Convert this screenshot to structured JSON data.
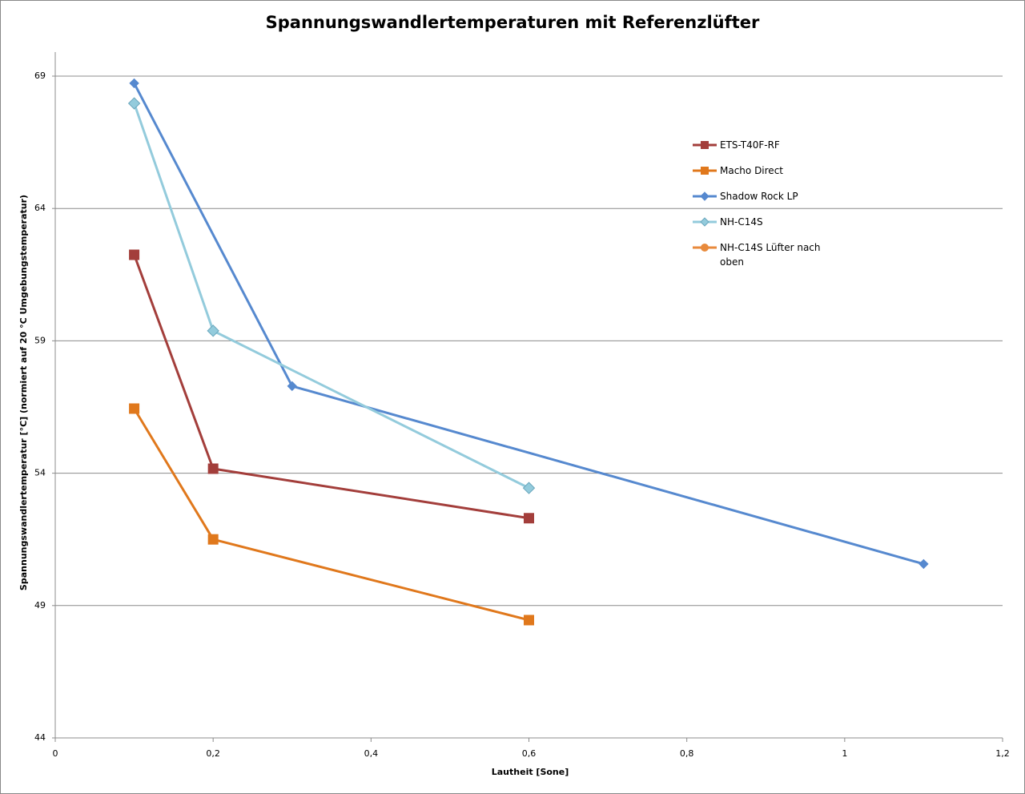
{
  "chart_data": {
    "type": "line",
    "title": "Spannungswandlertemperaturen mit Referenzlüfter",
    "x_label": "Lautheit [Sone]",
    "y_label": "Spannungswandlertemperatur [°C] (normiert auf 20 °C Umgebungstemperatur)",
    "xlim": [
      0,
      1.2
    ],
    "xticks": [
      0,
      {
        "value": 0.2,
        "label": "0,2"
      },
      {
        "value": 0.4,
        "label": "0,4"
      },
      {
        "value": 0.6,
        "label": "0,6"
      },
      {
        "value": 0.8,
        "label": "0,8"
      },
      1,
      {
        "value": 1.2,
        "label": "1,2"
      }
    ],
    "ylim": [
      44,
      69
    ],
    "yticks": [
      44,
      49,
      54,
      59,
      64,
      69
    ],
    "grid": true,
    "legend": "right",
    "series": [
      {
        "name": "ETS-T40F-RF",
        "color": "#a33e3b",
        "marker": "square",
        "x": [
          0.1,
          0.2,
          0.6
        ],
        "values": [
          62.25,
          54.17,
          52.3
        ]
      },
      {
        "name": "Macho Direct",
        "color": "#e0781c",
        "marker": "square",
        "x": [
          0.1,
          0.2,
          0.6
        ],
        "values": [
          56.44,
          51.5,
          48.45
        ]
      },
      {
        "name": "Shadow Rock LP",
        "color": "#5689cf",
        "marker": "diamond",
        "x": [
          0.1,
          0.3,
          1.1
        ],
        "values": [
          68.73,
          57.29,
          50.57
        ]
      },
      {
        "name": "NH-C14S",
        "color": "#93cbdc",
        "marker": "diamond",
        "x": [
          0.1,
          0.2,
          0.6
        ],
        "values": [
          67.97,
          59.38,
          53.44
        ]
      },
      {
        "name": "NH-C14S Lüfter nach oben",
        "color": "#e88a3c",
        "marker": "circle",
        "x": [],
        "values": []
      }
    ]
  }
}
